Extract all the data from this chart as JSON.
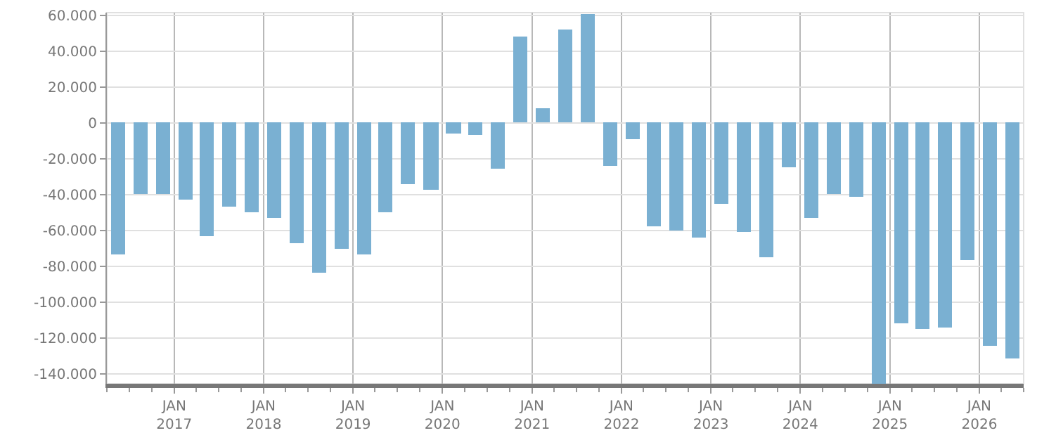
{
  "chart_data": {
    "type": "bar",
    "x": [
      "2016-05-15",
      "2016-08-15",
      "2016-11-15",
      "2017-02-15",
      "2017-05-15",
      "2017-08-15",
      "2017-11-15",
      "2018-02-15",
      "2018-05-15",
      "2018-08-15",
      "2018-11-15",
      "2019-02-15",
      "2019-05-15",
      "2019-08-15",
      "2019-11-15",
      "2020-02-15",
      "2020-05-15",
      "2020-08-15",
      "2020-11-15",
      "2021-02-15",
      "2021-05-15",
      "2021-08-15",
      "2021-11-15",
      "2022-02-15",
      "2022-05-15",
      "2022-08-15",
      "2022-11-15",
      "2023-02-15",
      "2023-05-15",
      "2023-08-15",
      "2023-11-15",
      "2024-02-15",
      "2024-05-15",
      "2024-08-15",
      "2024-11-15",
      "2025-02-15",
      "2025-05-15",
      "2025-08-15",
      "2025-11-15",
      "2026-02-15",
      "2026-05-15"
    ],
    "values": [
      -73000,
      -39500,
      -39500,
      -43000,
      -63000,
      -47000,
      -50000,
      -53000,
      -67000,
      -83500,
      -70500,
      -73500,
      -49500,
      -34000,
      -37000,
      -6000,
      -6500,
      -25500,
      48000,
      8500,
      52000,
      61000,
      -24000,
      -9000,
      -58000,
      -60000,
      -64000,
      -45000,
      -61000,
      -75000,
      -24500,
      -53000,
      -40000,
      -41000,
      -145500,
      -112000,
      -115000,
      -114500,
      -76500,
      -124000,
      -131000
    ],
    "color": "#7ab0d2",
    "xlim": [
      "2016-04-01",
      "2026-07-01"
    ],
    "xticks": [
      {
        "value": "2017-01-01",
        "label": "JAN\n2017"
      },
      {
        "value": "2018-01-01",
        "label": "JAN\n2018"
      },
      {
        "value": "2019-01-01",
        "label": "JAN\n2019"
      },
      {
        "value": "2020-01-01",
        "label": "JAN\n2020"
      },
      {
        "value": "2021-01-01",
        "label": "JAN\n2021"
      },
      {
        "value": "2022-01-01",
        "label": "JAN\n2022"
      },
      {
        "value": "2023-01-01",
        "label": "JAN\n2023"
      },
      {
        "value": "2024-01-01",
        "label": "JAN\n2024"
      },
      {
        "value": "2025-01-01",
        "label": "JAN\n2025"
      },
      {
        "value": "2026-01-01",
        "label": "JAN\n2026"
      }
    ],
    "ylim": [
      -145500,
      61500
    ],
    "yticks": [
      {
        "value": 60000,
        "label": "60.000"
      },
      {
        "value": 40000,
        "label": "40.000"
      },
      {
        "value": 20000,
        "label": "20.000"
      },
      0,
      {
        "value": -20000,
        "label": "-20.000"
      },
      {
        "value": -40000,
        "label": "-40.000"
      },
      {
        "value": -60000,
        "label": "-60.000"
      },
      {
        "value": -80000,
        "label": "-80.000"
      },
      {
        "value": -100000,
        "label": "-100.000"
      },
      {
        "value": -120000,
        "label": "-120.000"
      },
      {
        "value": -140000,
        "label": "-140.000"
      }
    ],
    "grid": true,
    "legend": false
  }
}
